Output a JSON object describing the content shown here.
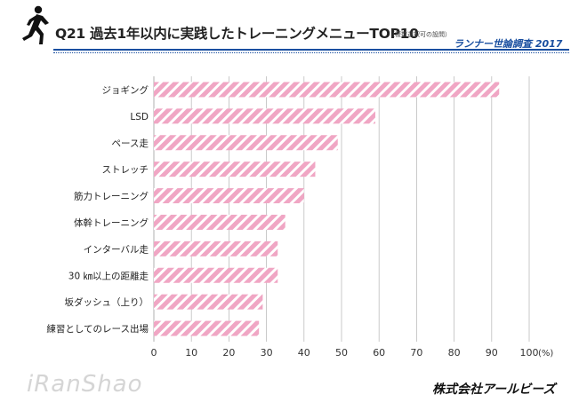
{
  "header": {
    "title": "Q21 過去1年以内に実践したトレーニングメニューTOP10",
    "title_note": "（複数選択可の設問）",
    "source": "ランナー世論調査 2017",
    "runner_icon": "runner-icon"
  },
  "footer": {
    "watermark": "iRanShao",
    "company": "株式会社アールビーズ"
  },
  "colors": {
    "bar_fill": "#f0a6c4",
    "bar_stripe": "#ffffff",
    "accent": "#1a4fa0",
    "grid": "#bdbdbd"
  },
  "chart_data": {
    "type": "bar",
    "orientation": "horizontal",
    "categories": [
      "ジョギング",
      "LSD",
      "ペース走",
      "ストレッチ",
      "筋力トレーニング",
      "体幹トレーニング",
      "インターバル走",
      "30 ㎞以上の距離走",
      "坂ダッシュ（上り）",
      "練習としてのレース出場"
    ],
    "values": [
      92,
      59,
      49,
      43,
      40,
      35,
      33,
      33,
      29,
      28
    ],
    "xlim": [
      0,
      100
    ],
    "ticks": [
      0,
      10,
      20,
      30,
      40,
      50,
      60,
      70,
      80,
      90,
      100
    ],
    "unit": "(%)",
    "grid": true
  }
}
